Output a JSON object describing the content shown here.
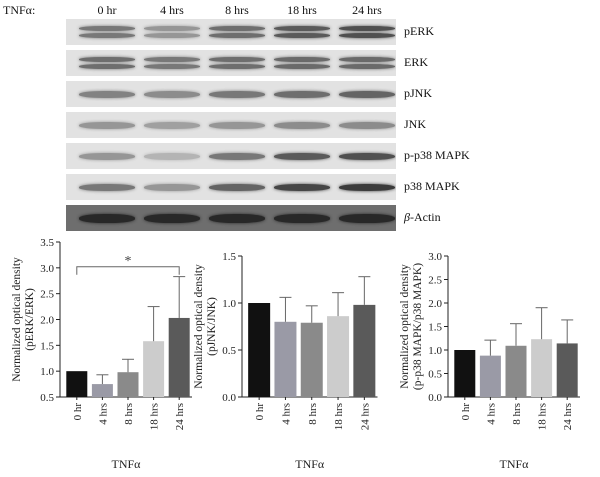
{
  "blot": {
    "treatment_label": "TNFα:",
    "lanes": [
      "0 hr",
      "4 hrs",
      "8 hrs",
      "18 hrs",
      "24 hrs"
    ],
    "proteins": [
      {
        "label": "pERK",
        "bands": 2,
        "intensity": [
          0.55,
          0.4,
          0.6,
          0.7,
          0.75
        ]
      },
      {
        "label": "ERK",
        "bands": 2,
        "intensity": [
          0.6,
          0.55,
          0.6,
          0.62,
          0.62
        ]
      },
      {
        "label": "pJNK",
        "bands": 1,
        "intensity": [
          0.5,
          0.45,
          0.55,
          0.6,
          0.65
        ]
      },
      {
        "label": "JNK",
        "bands": 1,
        "intensity": [
          0.4,
          0.35,
          0.4,
          0.45,
          0.45
        ]
      },
      {
        "label": "p-p38 MAPK",
        "bands": 1,
        "intensity": [
          0.4,
          0.25,
          0.55,
          0.7,
          0.75
        ]
      },
      {
        "label": "p38 MAPK",
        "bands": 1,
        "intensity": [
          0.55,
          0.4,
          0.65,
          0.8,
          0.85
        ]
      },
      {
        "label": "β-Actin",
        "italic_prefix": "β",
        "bands": 1,
        "dark": true,
        "intensity": [
          0.95,
          0.95,
          0.95,
          0.95,
          0.95
        ]
      }
    ]
  },
  "chart_data": [
    {
      "type": "bar",
      "categories": [
        "0 hr",
        "4 hrs",
        "8 hrs",
        "18 hrs",
        "24 hrs"
      ],
      "values": [
        1.0,
        0.75,
        0.98,
        1.58,
        2.03
      ],
      "errors": [
        0,
        0.18,
        0.25,
        0.67,
        0.8
      ],
      "colors": [
        "#111111",
        "#9a9aa6",
        "#8a8a8a",
        "#cccccc",
        "#5a5a5a"
      ],
      "xlabel": "TNFα",
      "ylabel": "Normalized optical density (pERK/ERK)",
      "ylim": [
        0.5,
        3.5
      ],
      "yticks": [
        "0.5",
        "1.0",
        "1.5",
        "2.0",
        "2.5",
        "3.0",
        "3.5"
      ],
      "annotation": {
        "text": "*",
        "from": "0 hr",
        "to": "24 hrs",
        "y": 3.02
      }
    },
    {
      "type": "bar",
      "categories": [
        "0 hr",
        "4 hrs",
        "8 hrs",
        "18 hrs",
        "24 hrs"
      ],
      "values": [
        1.0,
        0.8,
        0.79,
        0.86,
        0.98
      ],
      "errors": [
        0,
        0.26,
        0.18,
        0.25,
        0.3
      ],
      "colors": [
        "#111111",
        "#9a9aa6",
        "#8a8a8a",
        "#cccccc",
        "#5a5a5a"
      ],
      "xlabel": "TNFα",
      "ylabel": "Normalized optical density (pJNK/JNK)",
      "ylim": [
        0.0,
        1.5
      ],
      "yticks": [
        "0.0",
        "0.5",
        "1.0",
        "1.5"
      ]
    },
    {
      "type": "bar",
      "categories": [
        "0 hr",
        "4 hrs",
        "8 hrs",
        "18 hrs",
        "24 hrs"
      ],
      "values": [
        1.0,
        0.88,
        1.09,
        1.23,
        1.14
      ],
      "errors": [
        0,
        0.33,
        0.47,
        0.67,
        0.5
      ],
      "colors": [
        "#111111",
        "#9a9aa6",
        "#8a8a8a",
        "#cccccc",
        "#5a5a5a"
      ],
      "xlabel": "TNFα",
      "ylabel": "Normalized optical density (p-p38 MAPK/p38 MAPK)",
      "ylim": [
        0.0,
        3.0
      ],
      "yticks": [
        "0.0",
        "0.5",
        "1.0",
        "1.5",
        "2.0",
        "2.5",
        "3.0"
      ]
    }
  ]
}
